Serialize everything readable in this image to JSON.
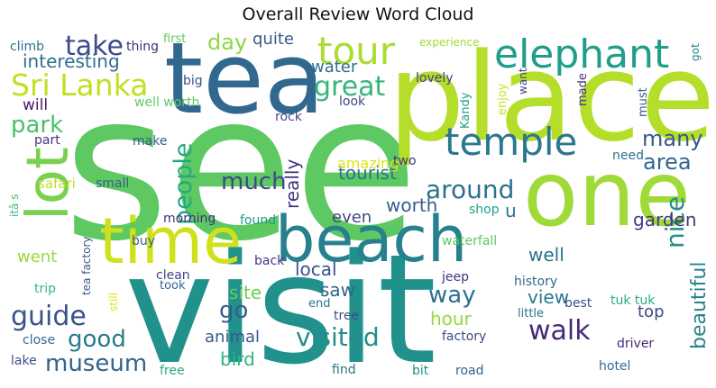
{
  "chart_data": {
    "type": "wordcloud",
    "title": "Overall Review Word Cloud",
    "words": [
      {
        "text": "see",
        "color": "#5ec962"
      },
      {
        "text": "visit",
        "color": "#21918c"
      },
      {
        "text": "place",
        "color": "#b5de2b"
      },
      {
        "text": "tea",
        "color": "#31688e"
      },
      {
        "text": "one",
        "color": "#a0da39"
      },
      {
        "text": "beach",
        "color": "#27808e"
      },
      {
        "text": "time",
        "color": "#d0e11c"
      },
      {
        "text": "lot",
        "color": "#7ad151"
      },
      {
        "text": "elephant",
        "color": "#1f9e89"
      },
      {
        "text": "temple",
        "color": "#2a788e"
      },
      {
        "text": "tour",
        "color": "#aadc32"
      },
      {
        "text": "Sri Lanka",
        "color": "#c2df23"
      },
      {
        "text": "guide",
        "color": "#3b528b"
      },
      {
        "text": "take",
        "color": "#3e4a89"
      },
      {
        "text": "great",
        "color": "#35b779"
      },
      {
        "text": "around",
        "color": "#2c728e"
      },
      {
        "text": "people",
        "color": "#22a884"
      },
      {
        "text": "walk",
        "color": "#482878"
      },
      {
        "text": "museum",
        "color": "#33638d"
      },
      {
        "text": "visited",
        "color": "#228d8d"
      },
      {
        "text": "nice",
        "color": "#21908d"
      },
      {
        "text": "good",
        "color": "#287c8e"
      },
      {
        "text": "way",
        "color": "#2d708e"
      },
      {
        "text": "much",
        "color": "#3e4989"
      },
      {
        "text": "many",
        "color": "#38588c"
      },
      {
        "text": "beautiful",
        "color": "#26828e"
      },
      {
        "text": "area",
        "color": "#31678e"
      },
      {
        "text": "park",
        "color": "#4ac16d"
      },
      {
        "text": "day",
        "color": "#8fd744"
      },
      {
        "text": "go",
        "color": "#375b8d"
      },
      {
        "text": "interesting",
        "color": "#2e6f8e"
      },
      {
        "text": "really",
        "color": "#46337e"
      },
      {
        "text": "tourist",
        "color": "#2b748e"
      },
      {
        "text": "hour",
        "color": "#95d840"
      },
      {
        "text": "well",
        "color": "#2c718e"
      },
      {
        "text": "quite",
        "color": "#375a8c"
      },
      {
        "text": "water",
        "color": "#2e6e8e"
      },
      {
        "text": "amazing",
        "color": "#dde318"
      },
      {
        "text": "worth",
        "color": "#34608d"
      },
      {
        "text": "even",
        "color": "#3f4788"
      },
      {
        "text": "local",
        "color": "#3c508b"
      },
      {
        "text": "site",
        "color": "#6ccd5a"
      },
      {
        "text": "top",
        "color": "#3f4889"
      },
      {
        "text": "view",
        "color": "#2a768e"
      },
      {
        "text": "saw",
        "color": "#32648e"
      },
      {
        "text": "garden",
        "color": "#453781"
      },
      {
        "text": "animal",
        "color": "#365c8d"
      },
      {
        "text": "bird",
        "color": "#2fb47c"
      },
      {
        "text": "went",
        "color": "#9bd93c"
      },
      {
        "text": "will",
        "color": "#481769"
      },
      {
        "text": "u",
        "color": "#2d718e"
      },
      {
        "text": "much",
        "color": "#3e4989"
      },
      {
        "text": "tuk tuk",
        "color": "#29af7f"
      },
      {
        "text": "morning",
        "color": "#472d7b"
      },
      {
        "text": "found",
        "color": "#1f998a"
      },
      {
        "text": "climb",
        "color": "#2d718e"
      },
      {
        "text": "thing",
        "color": "#472c7a"
      },
      {
        "text": "first",
        "color": "#62cb5f"
      },
      {
        "text": "experience",
        "color": "#a2da37"
      },
      {
        "text": "got",
        "color": "#277f8e"
      },
      {
        "text": "lovely",
        "color": "#414287"
      },
      {
        "text": "big",
        "color": "#3b518b"
      },
      {
        "text": "well worth",
        "color": "#5ec962"
      },
      {
        "text": "Kandy",
        "color": "#1fa188"
      },
      {
        "text": "enjoy",
        "color": "#cae11f"
      },
      {
        "text": "made",
        "color": "#46317e"
      },
      {
        "text": "must",
        "color": "#355e8d"
      },
      {
        "text": "want",
        "color": "#404688"
      },
      {
        "text": "rock",
        "color": "#3f4889"
      },
      {
        "text": "look",
        "color": "#3f4788"
      },
      {
        "text": "part",
        "color": "#46327e"
      },
      {
        "text": "make",
        "color": "#365d8d"
      },
      {
        "text": "two",
        "color": "#46337f"
      },
      {
        "text": "need",
        "color": "#2b758e"
      },
      {
        "text": "itâ s",
        "color": "#3fbc73"
      },
      {
        "text": "safari",
        "color": "#bddf26"
      },
      {
        "text": "small",
        "color": "#34618d"
      },
      {
        "text": "shop",
        "color": "#1fa287"
      },
      {
        "text": "buy",
        "color": "#355f8d"
      },
      {
        "text": "waterfall",
        "color": "#5ac864"
      },
      {
        "text": "tea factory",
        "color": "#39568c"
      },
      {
        "text": "clean",
        "color": "#3f4889"
      },
      {
        "text": "took",
        "color": "#32658e"
      },
      {
        "text": "back",
        "color": "#46337e"
      },
      {
        "text": "jeep",
        "color": "#46307e"
      },
      {
        "text": "history",
        "color": "#306a8e"
      },
      {
        "text": "best",
        "color": "#3b528b"
      },
      {
        "text": "trip",
        "color": "#35b779"
      },
      {
        "text": "still",
        "color": "#e5e419"
      },
      {
        "text": "end",
        "color": "#2a788e"
      },
      {
        "text": "little",
        "color": "#2c728e"
      },
      {
        "text": "tree",
        "color": "#3e4c8a"
      },
      {
        "text": "factory",
        "color": "#3e4989"
      },
      {
        "text": "close",
        "color": "#2e6d8e"
      },
      {
        "text": "driver",
        "color": "#482878"
      },
      {
        "text": "lake",
        "color": "#3b518b"
      },
      {
        "text": "free",
        "color": "#26ad81"
      },
      {
        "text": "find",
        "color": "#2c738e"
      },
      {
        "text": "bit",
        "color": "#228c8d"
      },
      {
        "text": "road",
        "color": "#33638d"
      },
      {
        "text": "hotel",
        "color": "#306a8e"
      }
    ]
  }
}
